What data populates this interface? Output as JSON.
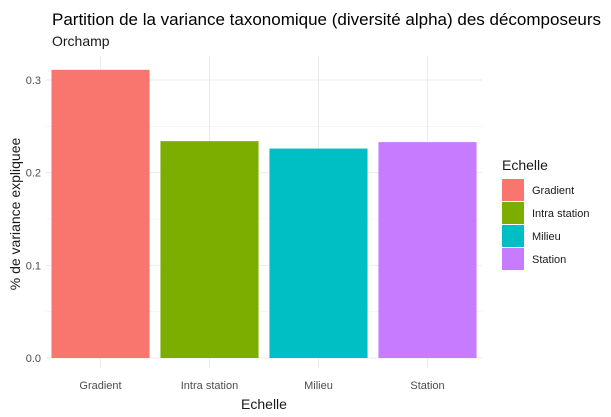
{
  "chart_data": {
    "type": "bar",
    "title": "Partition de la variance taxonomique (diversité alpha) des décomposeurs",
    "subtitle": "Orchamp",
    "xlabel": "Echelle",
    "ylabel": "% de variance expliquee",
    "categories": [
      "Gradient",
      "Intra station",
      "Milieu",
      "Station"
    ],
    "values": [
      0.311,
      0.234,
      0.226,
      0.233
    ],
    "colors": [
      "#F8766D",
      "#7CAE00",
      "#00BFC4",
      "#C77CFF"
    ],
    "ylim": [
      0,
      0.31
    ],
    "yticks": [
      0.0,
      0.1,
      0.2,
      0.3
    ],
    "ytick_labels": [
      "0.0",
      "0.1",
      "0.2",
      "0.3"
    ],
    "grid": true,
    "legend": {
      "title": "Echelle",
      "placement": "right",
      "entries": [
        "Gradient",
        "Intra station",
        "Milieu",
        "Station"
      ]
    }
  }
}
